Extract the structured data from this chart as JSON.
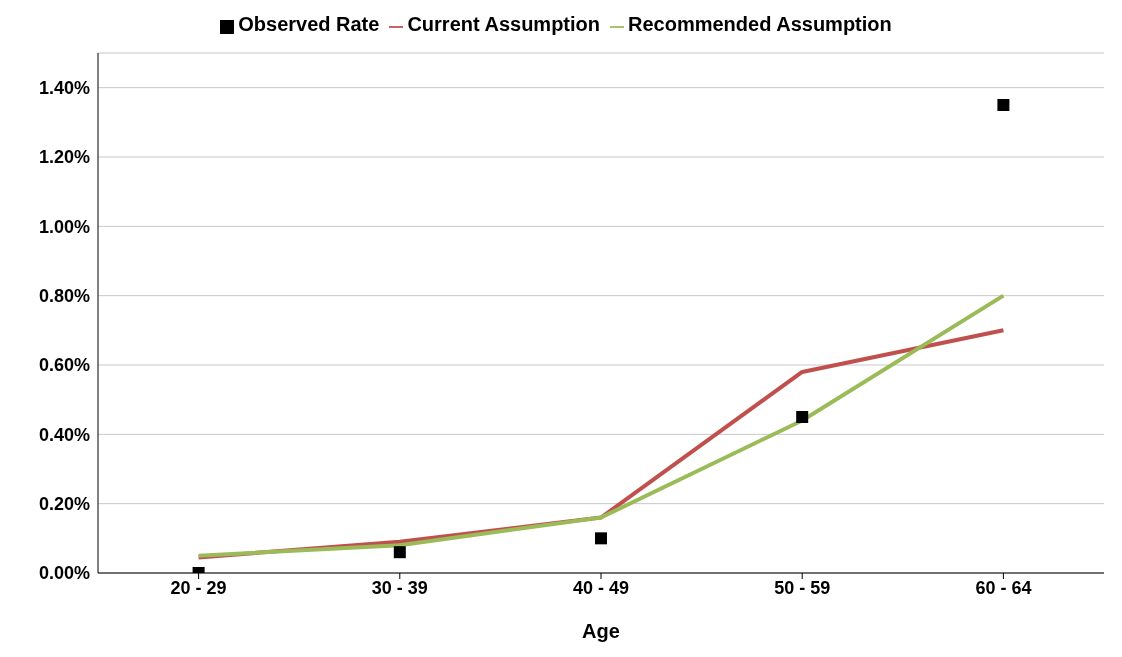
{
  "chart_data": {
    "type": "line",
    "xlabel": "Age",
    "categories": [
      "20 - 29",
      "30 - 39",
      "40 - 49",
      "50 - 59",
      "60 - 64"
    ],
    "series": [
      {
        "name": "Observed Rate",
        "type": "scatter",
        "color": "#000000",
        "marker": "square",
        "values": [
          0.0,
          0.06,
          0.1,
          0.45,
          1.35
        ]
      },
      {
        "name": "Current Assumption",
        "color": "#c0504d",
        "marker": "none",
        "values": [
          0.045,
          0.09,
          0.16,
          0.58,
          0.7
        ]
      },
      {
        "name": "Recommended Assumption",
        "color": "#9bbb59",
        "marker": "none",
        "values": [
          0.05,
          0.08,
          0.16,
          0.44,
          0.8
        ]
      }
    ],
    "ylim": [
      0,
      1.5
    ],
    "yticks": [
      {
        "value": 0,
        "label": "0.00%"
      },
      {
        "value": 0.2,
        "label": "0.20%"
      },
      {
        "value": 0.4,
        "label": "0.40%"
      },
      {
        "value": 0.6,
        "label": "0.60%"
      },
      {
        "value": 0.8,
        "label": "0.80%"
      },
      {
        "value": 1.0,
        "label": "1.00%"
      },
      {
        "value": 1.2,
        "label": "1.20%"
      },
      {
        "value": 1.4,
        "label": "1.40%"
      }
    ],
    "grid": "y",
    "legend": "top",
    "line_style": "solid"
  }
}
